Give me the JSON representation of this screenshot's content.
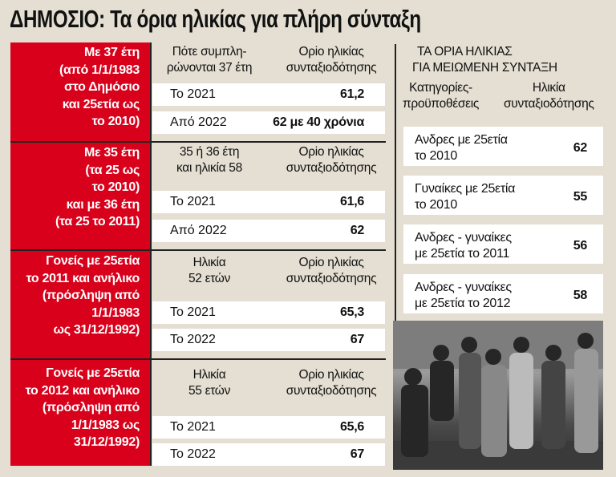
{
  "title": "ΔΗΜΟΣΙΟ: Τα όρια ηλικίας για πλήρη σύνταξη",
  "blocks": [
    {
      "category": [
        "Με 37 έτη",
        "(από 1/1/1983",
        "στο Δημόσιο",
        "και  25ετία ως",
        "το 2010)"
      ],
      "col1_header": [
        "Πότε συμπλη-",
        "ρώνονται 37 έτη"
      ],
      "col2_header": [
        "Ορio ηλικίας",
        "συνταξιοδότησης"
      ],
      "rows": [
        {
          "label": "Το 2021",
          "value": "61,2"
        },
        {
          "label": "Από 2022",
          "value": "62 με 40 χρόνια"
        }
      ]
    },
    {
      "category": [
        "Με 35 έτη",
        "(τα 25 ως",
        "το 2010)",
        "και με 36 έτη",
        "(τα 25 το 2011)"
      ],
      "col1_header": [
        "35 ή 36 έτη",
        "και ηλικία 58"
      ],
      "col2_header": [
        "Ορio ηλικίας",
        "συνταξιοδότησης"
      ],
      "rows": [
        {
          "label": "Το 2021",
          "value": "61,6"
        },
        {
          "label": "Από 2022",
          "value": "62"
        }
      ]
    },
    {
      "category": [
        "Γονείς με 25ετία",
        "το 2011 και ανήλικο",
        "(πρόσληψη από",
        "1/1/1983",
        "ως 31/12/1992)"
      ],
      "col1_header": [
        "Ηλικία",
        "52 ετών"
      ],
      "col2_header": [
        "Ορio ηλικίας",
        "συνταξιοδότησης"
      ],
      "rows": [
        {
          "label": "Το 2021",
          "value": "65,3"
        },
        {
          "label": "Το 2022",
          "value": "67"
        }
      ]
    },
    {
      "category": [
        "Γονείς με 25ετία",
        "το 2012 και ανήλικο",
        "(πρόσληψη από",
        "1/1/1983 ως",
        "31/12/1992)"
      ],
      "col1_header": [
        "Ηλικία",
        "55 ετών"
      ],
      "col2_header": [
        "Ορio ηλικίας",
        "συνταξιοδότησης"
      ],
      "rows": [
        {
          "label": "Το 2021",
          "value": "65,6"
        },
        {
          "label": "Το 2022",
          "value": "67"
        }
      ]
    }
  ],
  "reduced": {
    "title": [
      "ΤΑ ΟΡΙΑ ΗΛΙΚΙΑΣ",
      "ΓΙΑ ΜΕΙΩΜΕΝΗ ΣΥΝΤΑΞΗ"
    ],
    "col1_header": [
      "Κατηγορίες-",
      "προϋποθέσεις"
    ],
    "col2_header": [
      "Ηλικία",
      "συνταξιοδότησης"
    ],
    "items": [
      {
        "label": [
          "Ανδρες με 25ετία",
          "το 2010"
        ],
        "value": "62"
      },
      {
        "label": [
          "Γυναίκες με 25ετία",
          "το 2010"
        ],
        "value": "55"
      },
      {
        "label": [
          "Ανδρες - γυναίκες",
          "με 25ετία το 2011"
        ],
        "value": "56"
      },
      {
        "label": [
          "Ανδρες - γυναίκες",
          "με 25ετία το 2012"
        ],
        "value": "58"
      }
    ]
  },
  "colors": {
    "accent": "#d9001b",
    "background": "#e4dfd2"
  }
}
